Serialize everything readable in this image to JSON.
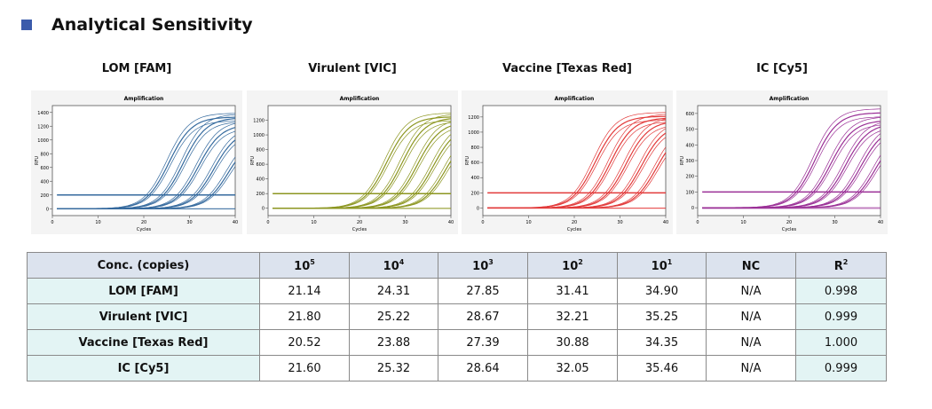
{
  "page": {
    "title": "Analytical Sensitivity",
    "accent_color": "#3b5bab"
  },
  "charts": [
    {
      "heading": "LOM [FAM]",
      "color": "#356a9e"
    },
    {
      "heading": "Virulent [VIC]",
      "color": "#8c9620"
    },
    {
      "heading": "Vaccine [Texas Red]",
      "color": "#e23a3a"
    },
    {
      "heading": "IC [Cy5]",
      "color": "#9a2f96"
    }
  ],
  "chart_data": [
    {
      "type": "line",
      "title": "Amplification",
      "xlabel": "Cycles",
      "ylabel": "RFU",
      "xlim": [
        0,
        40
      ],
      "ylim": [
        -100,
        1500
      ],
      "xticks": [
        0,
        10,
        20,
        30,
        40
      ],
      "yticks": [
        0,
        200,
        400,
        600,
        800,
        1000,
        1200,
        1400
      ],
      "threshold": 200,
      "series": [
        {
          "ct": 21.14,
          "plateau": 1390
        },
        {
          "ct": 24.31,
          "plateau": 1380
        },
        {
          "ct": 27.85,
          "plateau": 1280
        },
        {
          "ct": 31.41,
          "plateau": 1200
        },
        {
          "ct": 34.9,
          "plateau": 1100
        }
      ]
    },
    {
      "type": "line",
      "title": "Amplification",
      "xlabel": "Cycles",
      "ylabel": "RFU",
      "xlim": [
        0,
        40
      ],
      "ylim": [
        -100,
        1400
      ],
      "xticks": [
        0,
        10,
        20,
        30,
        40
      ],
      "yticks": [
        0,
        200,
        400,
        600,
        800,
        1000,
        1200
      ],
      "threshold": 200,
      "series": [
        {
          "ct": 21.8,
          "plateau": 1300
        },
        {
          "ct": 25.22,
          "plateau": 1290
        },
        {
          "ct": 28.67,
          "plateau": 1230
        },
        {
          "ct": 32.21,
          "plateau": 1180
        },
        {
          "ct": 35.25,
          "plateau": 1100
        }
      ]
    },
    {
      "type": "line",
      "title": "Amplification",
      "xlabel": "Cycles",
      "ylabel": "RFU",
      "xlim": [
        0,
        40
      ],
      "ylim": [
        -100,
        1350
      ],
      "xticks": [
        0,
        10,
        20,
        30,
        40
      ],
      "yticks": [
        0,
        200,
        400,
        600,
        800,
        1000,
        1200
      ],
      "threshold": 200,
      "series": [
        {
          "ct": 20.52,
          "plateau": 1260
        },
        {
          "ct": 23.88,
          "plateau": 1240
        },
        {
          "ct": 27.39,
          "plateau": 1200
        },
        {
          "ct": 30.88,
          "plateau": 1150
        },
        {
          "ct": 34.35,
          "plateau": 1100
        }
      ]
    },
    {
      "type": "line",
      "title": "Amplification",
      "xlabel": "Cycles",
      "ylabel": "RFU",
      "xlim": [
        0,
        40
      ],
      "ylim": [
        -50,
        650
      ],
      "xticks": [
        0,
        10,
        20,
        30,
        40
      ],
      "yticks": [
        0,
        100,
        200,
        300,
        400,
        500,
        600
      ],
      "threshold": 100,
      "series": [
        {
          "ct": 21.6,
          "plateau": 630
        },
        {
          "ct": 25.32,
          "plateau": 580
        },
        {
          "ct": 28.64,
          "plateau": 560
        },
        {
          "ct": 32.05,
          "plateau": 540
        },
        {
          "ct": 35.46,
          "plateau": 510
        }
      ]
    }
  ],
  "table": {
    "header_label": "Conc. (copies)",
    "columns": [
      {
        "base": "10",
        "exp": "5"
      },
      {
        "base": "10",
        "exp": "4"
      },
      {
        "base": "10",
        "exp": "3"
      },
      {
        "base": "10",
        "exp": "2"
      },
      {
        "base": "10",
        "exp": "1"
      },
      {
        "base": "NC",
        "exp": ""
      },
      {
        "base": "R",
        "exp": "2"
      }
    ],
    "rows": [
      {
        "label": "LOM [FAM]",
        "values": [
          "21.14",
          "24.31",
          "27.85",
          "31.41",
          "34.90",
          "N/A",
          "0.998"
        ]
      },
      {
        "label": "Virulent [VIC]",
        "values": [
          "21.80",
          "25.22",
          "28.67",
          "32.21",
          "35.25",
          "N/A",
          "0.999"
        ]
      },
      {
        "label": "Vaccine [Texas Red]",
        "values": [
          "20.52",
          "23.88",
          "27.39",
          "30.88",
          "34.35",
          "N/A",
          "1.000"
        ]
      },
      {
        "label": "IC [Cy5]",
        "values": [
          "21.60",
          "25.32",
          "28.64",
          "32.05",
          "35.46",
          "N/A",
          "0.999"
        ]
      }
    ]
  }
}
